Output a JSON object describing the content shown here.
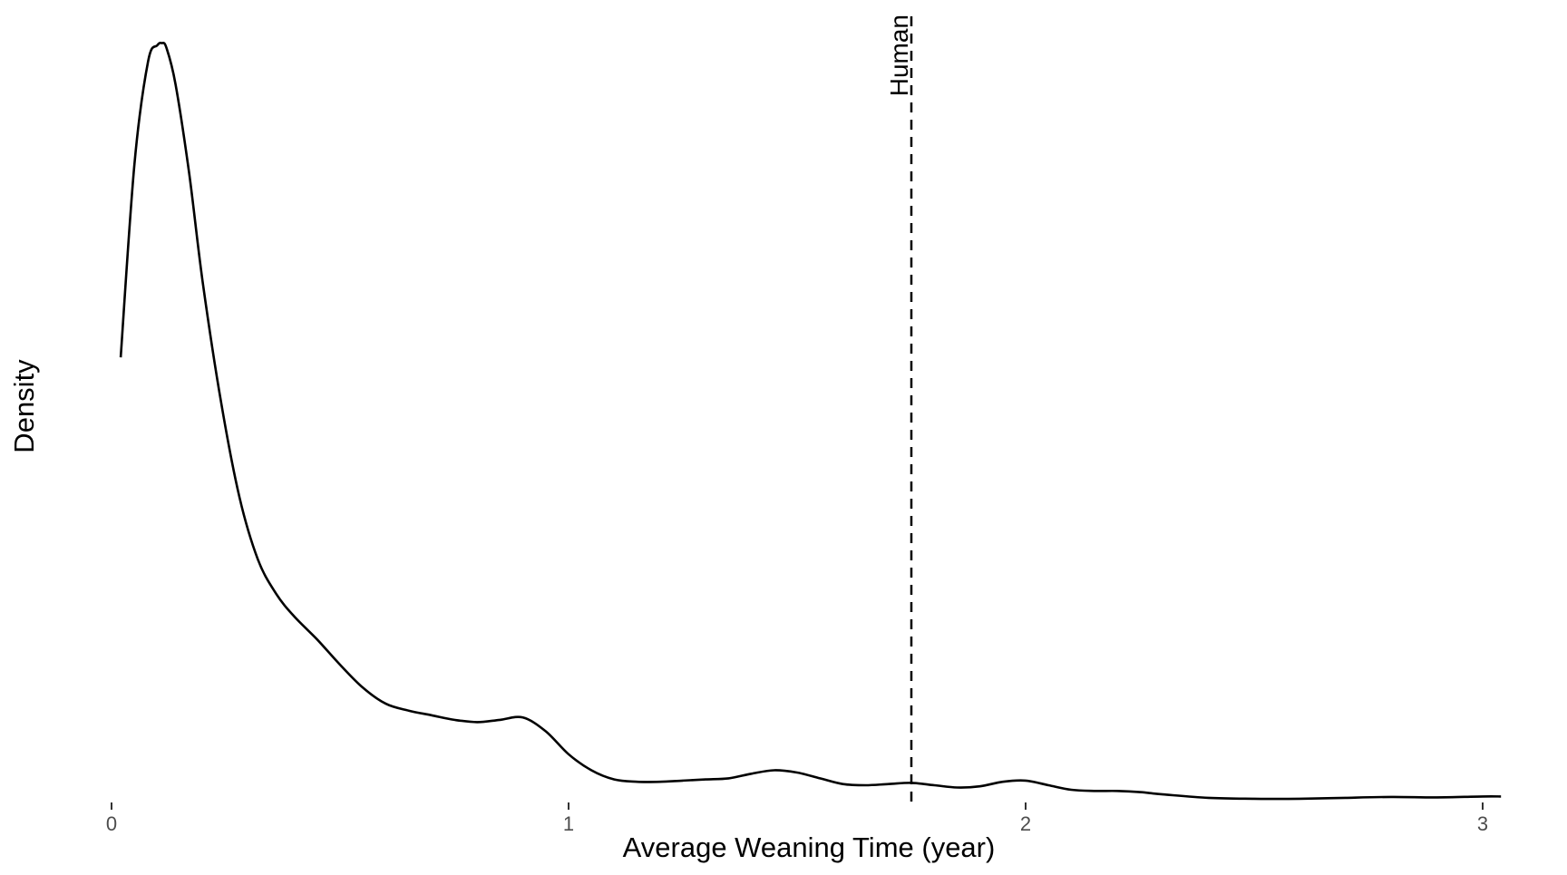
{
  "chart_data": {
    "type": "line",
    "subtype": "density",
    "title": "",
    "xlabel": "Average Weaning Time (year)",
    "ylabel": "Density",
    "xlim": [
      -0.15,
      3.15
    ],
    "ylim": [
      0,
      3.45
    ],
    "xticks": [
      0,
      1,
      2,
      3
    ],
    "xtick_labels": [
      "0",
      "1",
      "2",
      "3"
    ],
    "yticks_shown": false,
    "grid": false,
    "legend": "none",
    "line_color": "#000000",
    "series": [
      {
        "x": [
          0.02,
          0.05,
          0.08,
          0.1,
          0.11,
          0.12,
          0.14,
          0.17,
          0.2,
          0.24,
          0.28,
          0.32,
          0.36,
          0.4,
          0.45,
          0.5,
          0.55,
          0.6,
          0.65,
          0.7,
          0.75,
          0.8,
          0.85,
          0.9,
          0.95,
          1.0,
          1.05,
          1.1,
          1.15,
          1.2,
          1.25,
          1.3,
          1.35,
          1.4,
          1.45,
          1.5,
          1.55,
          1.6,
          1.65,
          1.7,
          1.75,
          1.8,
          1.85,
          1.9,
          1.95,
          2.0,
          2.05,
          2.1,
          2.15,
          2.2,
          2.25,
          2.3,
          2.4,
          2.5,
          2.6,
          2.7,
          2.8,
          2.9,
          3.0,
          3.04
        ],
        "y": [
          1.96,
          2.8,
          3.25,
          3.32,
          3.33,
          3.31,
          3.15,
          2.76,
          2.28,
          1.76,
          1.35,
          1.08,
          0.93,
          0.83,
          0.73,
          0.62,
          0.52,
          0.45,
          0.42,
          0.4,
          0.38,
          0.37,
          0.38,
          0.39,
          0.33,
          0.23,
          0.16,
          0.12,
          0.11,
          0.11,
          0.115,
          0.12,
          0.125,
          0.145,
          0.16,
          0.15,
          0.125,
          0.1,
          0.095,
          0.1,
          0.105,
          0.095,
          0.085,
          0.09,
          0.11,
          0.115,
          0.095,
          0.075,
          0.07,
          0.07,
          0.065,
          0.055,
          0.04,
          0.036,
          0.036,
          0.04,
          0.044,
          0.042,
          0.046,
          0.046
        ]
      }
    ],
    "annotations": [
      {
        "type": "vline",
        "x": 1.75,
        "style": "dashed",
        "label": "Human"
      }
    ]
  }
}
